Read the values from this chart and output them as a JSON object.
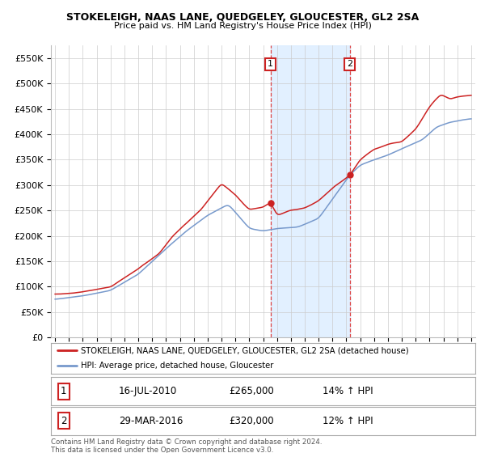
{
  "title": "STOKELEIGH, NAAS LANE, QUEDGELEY, GLOUCESTER, GL2 2SA",
  "subtitle": "Price paid vs. HM Land Registry's House Price Index (HPI)",
  "ylabel_ticks": [
    "£0",
    "£50K",
    "£100K",
    "£150K",
    "£200K",
    "£250K",
    "£300K",
    "£350K",
    "£400K",
    "£450K",
    "£500K",
    "£550K"
  ],
  "ytick_values": [
    0,
    50000,
    100000,
    150000,
    200000,
    250000,
    300000,
    350000,
    400000,
    450000,
    500000,
    550000
  ],
  "ylim": [
    0,
    575000
  ],
  "sale1_x": 2010.54,
  "sale1_y": 265000,
  "sale1_date": "16-JUL-2010",
  "sale1_price": "£265,000",
  "sale1_note": "14% ↑ HPI",
  "sale2_x": 2016.24,
  "sale2_y": 320000,
  "sale2_date": "29-MAR-2016",
  "sale2_price": "£320,000",
  "sale2_note": "12% ↑ HPI",
  "line1_color": "#cc2222",
  "line2_color": "#7799cc",
  "shade_color": "#ddeeff",
  "vline_color": "#dd4444",
  "grid_color": "#cccccc",
  "badge_edge_color": "#cc2222",
  "background_color": "#ffffff",
  "footer_text": "Contains HM Land Registry data © Crown copyright and database right 2024.\nThis data is licensed under the Open Government Licence v3.0.",
  "legend1": "STOKELEIGH, NAAS LANE, QUEDGELEY, GLOUCESTER, GL2 2SA (detached house)",
  "legend2": "HPI: Average price, detached house, Gloucester",
  "xlim_start": 1994.7,
  "xlim_end": 2025.3,
  "xtick_years": [
    1995,
    1996,
    1997,
    1998,
    1999,
    2000,
    2001,
    2002,
    2003,
    2004,
    2005,
    2006,
    2007,
    2008,
    2009,
    2010,
    2011,
    2012,
    2013,
    2014,
    2015,
    2016,
    2017,
    2018,
    2019,
    2020,
    2021,
    2022,
    2023,
    2024,
    2025
  ]
}
